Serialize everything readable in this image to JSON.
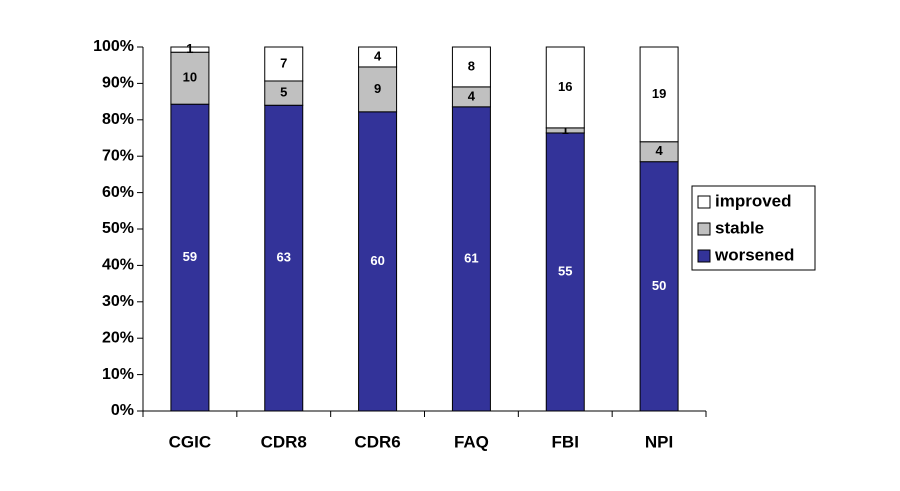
{
  "chart_data": {
    "type": "bar",
    "stacking": "percent",
    "categories": [
      "CGIC",
      "CDR8",
      "CDR6",
      "FAQ",
      "FBI",
      "NPI"
    ],
    "series": [
      {
        "name": "worsened",
        "color": "#333399",
        "values": [
          59,
          63,
          60,
          61,
          55,
          50
        ]
      },
      {
        "name": "stable",
        "color": "#c0c0c0",
        "values": [
          10,
          5,
          9,
          4,
          1,
          4
        ]
      },
      {
        "name": "improved",
        "color": "#ffffff",
        "values": [
          1,
          7,
          4,
          8,
          16,
          19
        ]
      }
    ],
    "ylim": [
      0,
      100
    ],
    "yticks": [
      {
        "value": 0,
        "label": "0%"
      },
      {
        "value": 10,
        "label": "10%"
      },
      {
        "value": 20,
        "label": "20%"
      },
      {
        "value": 30,
        "label": "30%"
      },
      {
        "value": 40,
        "label": "40%"
      },
      {
        "value": 50,
        "label": "50%"
      },
      {
        "value": 60,
        "label": "60%"
      },
      {
        "value": 70,
        "label": "70%"
      },
      {
        "value": 80,
        "label": "80%"
      },
      {
        "value": 90,
        "label": "90%"
      },
      {
        "value": 100,
        "label": "100%"
      }
    ],
    "grid": false,
    "legend": "right"
  }
}
